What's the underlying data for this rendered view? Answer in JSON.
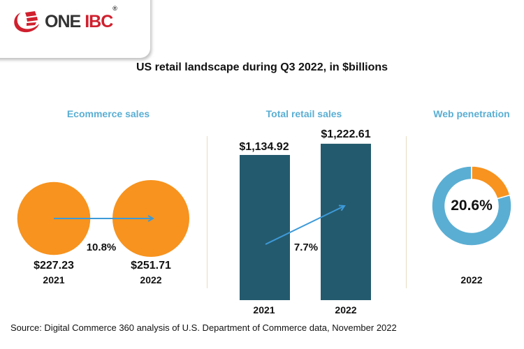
{
  "logo": {
    "text_one": "ONE",
    "text_ibc": "IBC",
    "reg": "®"
  },
  "title": "US retail landscape during Q3 2022, in $billions",
  "source": "Source: Digital Commerce 360 analysis of U.S. Department of Commerce data, November 2022",
  "colors": {
    "orange": "#f7931e",
    "bar": "#245a6e",
    "blue": "#5aaed3",
    "arrow": "#3d9ad9",
    "divider": "#e8dcc0"
  },
  "chart_data": [
    {
      "type": "bubble",
      "title": "Ecommerce sales",
      "categories": [
        "2021",
        "2022"
      ],
      "values": [
        227.23,
        251.71
      ],
      "value_labels": [
        "$227.23",
        "$251.71"
      ],
      "growth_label": "10.8%"
    },
    {
      "type": "bar",
      "title": "Total retail sales",
      "categories": [
        "2021",
        "2022"
      ],
      "values": [
        1134.92,
        1222.61
      ],
      "value_labels": [
        "$1,134.92",
        "$1,222.61"
      ],
      "growth_label": "7.7%"
    },
    {
      "type": "pie",
      "title": "Web penetration",
      "categories": [
        "2022"
      ],
      "values": [
        20.6
      ],
      "center_label": "20.6%",
      "year_label": "2022"
    }
  ]
}
